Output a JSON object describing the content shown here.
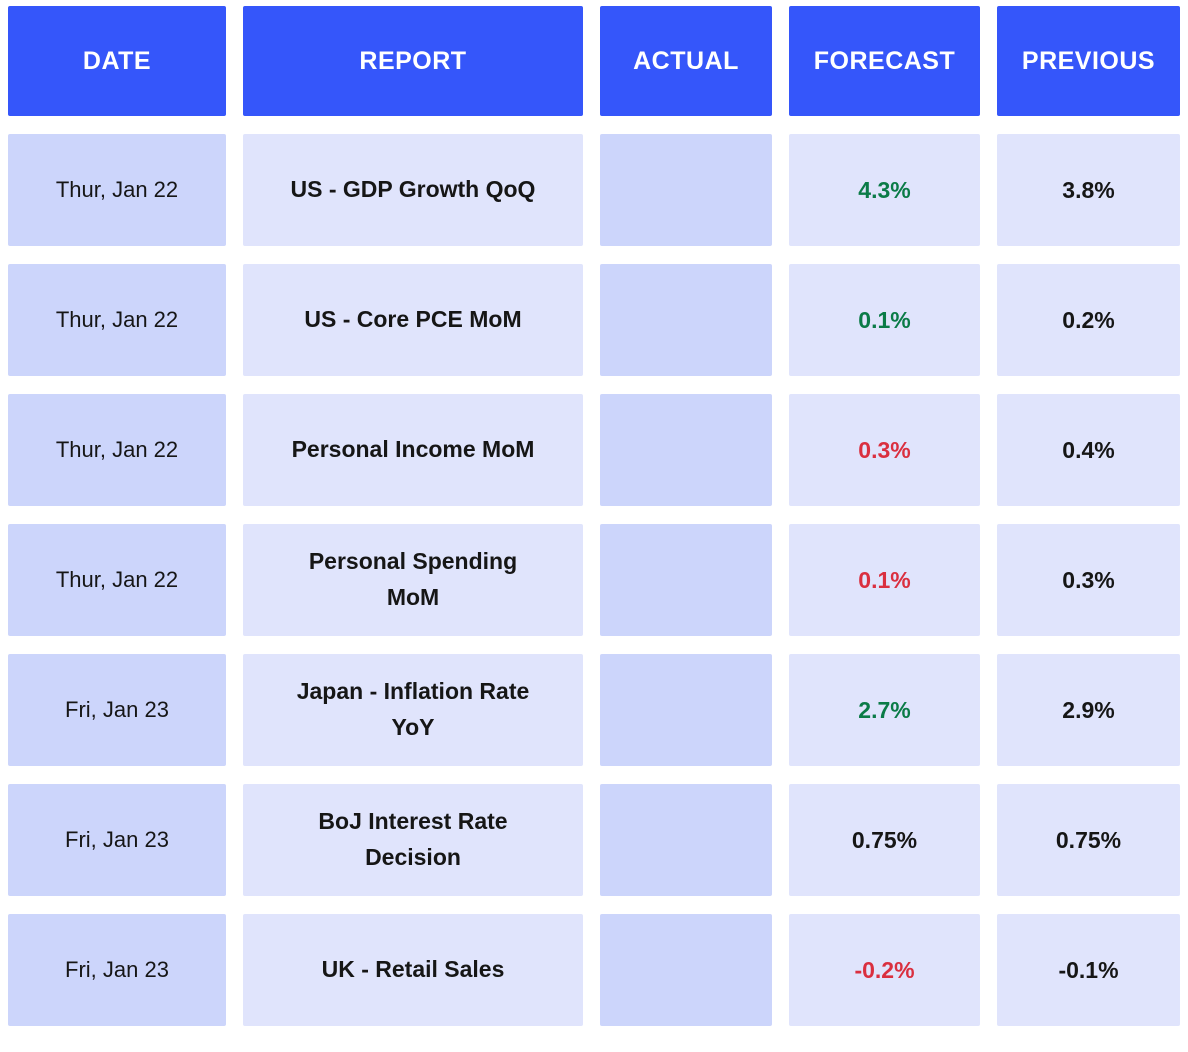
{
  "colors": {
    "header_bg": "#3556FA",
    "header_text": "#FFFFFF",
    "cell_dark_bg": "#CCD5FB",
    "cell_light_bg": "#E0E4FC",
    "text_dark": "#161616",
    "positive": "#0B7B47",
    "negative": "#DA2F3F"
  },
  "chart_data": {
    "type": "table",
    "title": "Economic calendar — upcoming reports with forecast and previous values",
    "columns": [
      "DATE",
      "REPORT",
      "ACTUAL",
      "FORECAST",
      "PREVIOUS"
    ],
    "rows": [
      {
        "date": "Thur, Jan 22",
        "report": "US - GDP Growth QoQ",
        "actual": "",
        "forecast": "4.3%",
        "trend": "positive",
        "previous": "3.8%"
      },
      {
        "date": "Thur, Jan 22",
        "report": "US - Core PCE MoM",
        "actual": "",
        "forecast": "0.1%",
        "trend": "positive",
        "previous": "0.2%"
      },
      {
        "date": "Thur, Jan 22",
        "report": "Personal Income MoM",
        "actual": "",
        "forecast": "0.3%",
        "trend": "negative",
        "previous": "0.4%"
      },
      {
        "date": "Thur, Jan 22",
        "report": "Personal Spending MoM",
        "actual": "",
        "forecast": "0.1%",
        "trend": "negative",
        "previous": "0.3%"
      },
      {
        "date": "Fri, Jan 23",
        "report": "Japan - Inflation Rate YoY",
        "actual": "",
        "forecast": "2.7%",
        "trend": "positive",
        "previous": "2.9%"
      },
      {
        "date": "Fri, Jan 23",
        "report": "BoJ Interest Rate Decision",
        "actual": "",
        "forecast": "0.75%",
        "trend": "neutral",
        "previous": "0.75%"
      },
      {
        "date": "Fri, Jan 23",
        "report": "UK - Retail Sales",
        "actual": "",
        "forecast": "-0.2%",
        "trend": "negative",
        "previous": "-0.1%"
      }
    ]
  }
}
